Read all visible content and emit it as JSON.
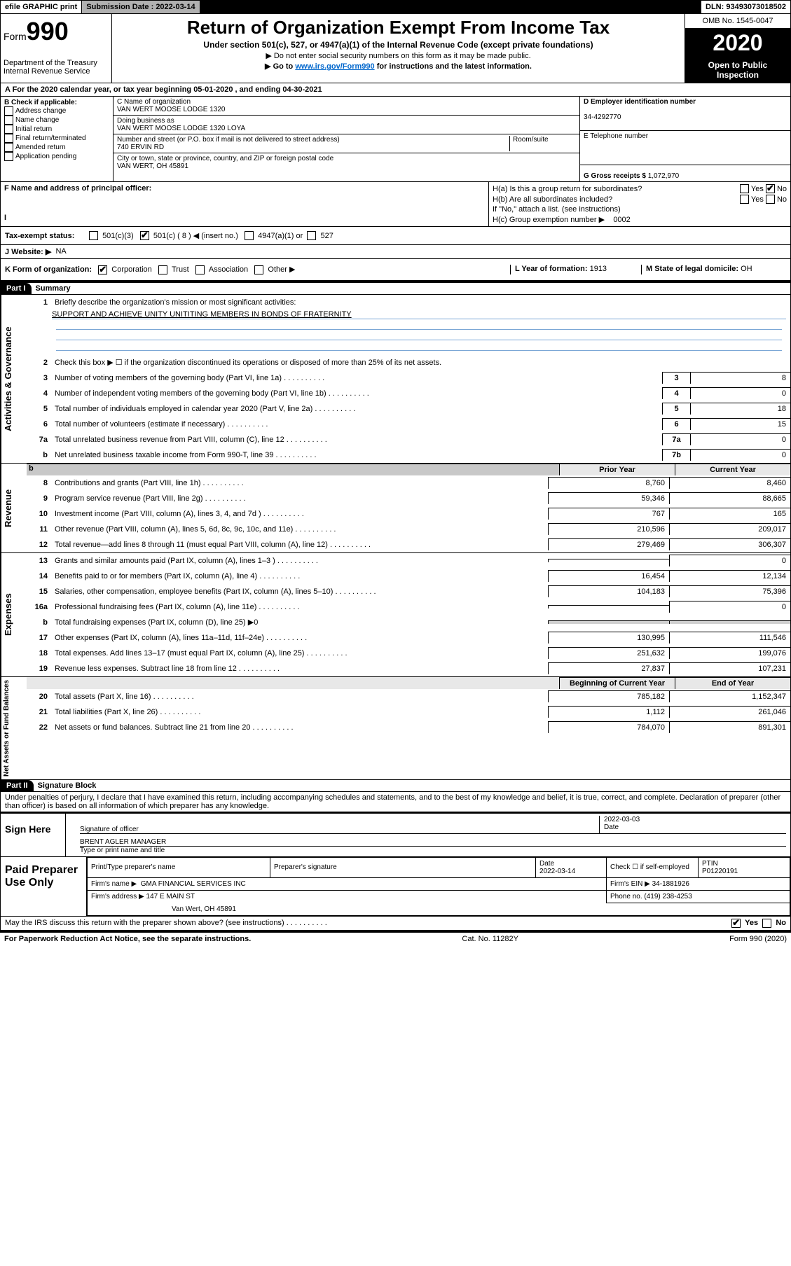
{
  "topbar": {
    "efile": "efile GRAPHIC print",
    "submission_label": "Submission Date : 2022-03-14",
    "dln": "DLN: 93493073018502"
  },
  "header": {
    "form_label": "Form",
    "form_num": "990",
    "dept": "Department of the Treasury",
    "irs": "Internal Revenue Service",
    "title": "Return of Organization Exempt From Income Tax",
    "subtitle": "Under section 501(c), 527, or 4947(a)(1) of the Internal Revenue Code (except private foundations)",
    "instr1": "▶ Do not enter social security numbers on this form as it may be made public.",
    "instr2_pre": "▶ Go to ",
    "instr2_link": "www.irs.gov/Form990",
    "instr2_post": " for instructions and the latest information.",
    "omb": "OMB No. 1545-0047",
    "year": "2020",
    "inspection": "Open to Public Inspection"
  },
  "rowA": "A  For the 2020 calendar year, or tax year beginning 05-01-2020    , and ending 04-30-2021",
  "B": {
    "label": "B Check if applicable:",
    "items": [
      "Address change",
      "Name change",
      "Initial return",
      "Final return/terminated",
      "Amended return",
      "Application pending"
    ]
  },
  "C": {
    "name_label": "C Name of organization",
    "name": "VAN WERT MOOSE LODGE 1320",
    "dba_label": "Doing business as",
    "dba": "VAN WERT MOOSE LODGE 1320 LOYA",
    "addr_label": "Number and street (or P.O. box if mail is not delivered to street address)",
    "room_label": "Room/suite",
    "addr": "740 ERVIN RD",
    "city_label": "City or town, state or province, country, and ZIP or foreign postal code",
    "city": "VAN WERT, OH  45891"
  },
  "D": {
    "label": "D Employer identification number",
    "ein": "34-4292770"
  },
  "E": {
    "label": "E Telephone number",
    "phone": ""
  },
  "G": {
    "label": "G Gross receipts $",
    "val": "1,072,970"
  },
  "F": {
    "label": "F Name and address of principal officer:"
  },
  "H": {
    "a": "H(a)  Is this a group return for subordinates?",
    "b": "H(b)  Are all subordinates included?",
    "b_note": "If \"No,\" attach a list. (see instructions)",
    "c": "H(c)  Group exemption number ▶",
    "c_val": "0002",
    "yes": "Yes",
    "no": "No"
  },
  "I": {
    "label": "Tax-exempt status:",
    "o1": "501(c)(3)",
    "o2": "501(c) ( 8 ) ◀ (insert no.)",
    "o3": "4947(a)(1) or",
    "o4": "527"
  },
  "J": {
    "label": "J   Website: ▶",
    "val": "NA"
  },
  "K": {
    "label": "K Form of organization:",
    "o1": "Corporation",
    "o2": "Trust",
    "o3": "Association",
    "o4": "Other ▶"
  },
  "L": {
    "label": "L Year of formation:",
    "val": "1913"
  },
  "M": {
    "label": "M State of legal domicile:",
    "val": "OH"
  },
  "part1": {
    "header": "Part I",
    "title": "Summary",
    "l1": "Briefly describe the organization's mission or most significant activities:",
    "l1_val": "SUPPORT AND ACHIEVE UNITY UNITITING MEMBERS IN BONDS OF FRATERNITY",
    "l2": "Check this box ▶ ☐  if the organization discontinued its operations or disposed of more than 25% of its net assets.",
    "lines_gov": [
      {
        "n": "3",
        "d": "Number of voting members of the governing body (Part VI, line 1a)",
        "c": "3",
        "v": "8"
      },
      {
        "n": "4",
        "d": "Number of independent voting members of the governing body (Part VI, line 1b)",
        "c": "4",
        "v": "0"
      },
      {
        "n": "5",
        "d": "Total number of individuals employed in calendar year 2020 (Part V, line 2a)",
        "c": "5",
        "v": "18"
      },
      {
        "n": "6",
        "d": "Total number of volunteers (estimate if necessary)",
        "c": "6",
        "v": "15"
      },
      {
        "n": "7a",
        "d": "Total unrelated business revenue from Part VIII, column (C), line 12",
        "c": "7a",
        "v": "0"
      },
      {
        "n": "b",
        "d": "Net unrelated business taxable income from Form 990-T, line 39",
        "c": "7b",
        "v": "0"
      }
    ],
    "head_prior": "Prior Year",
    "head_current": "Current Year",
    "lines_rev": [
      {
        "n": "8",
        "d": "Contributions and grants (Part VIII, line 1h)",
        "p": "8,760",
        "c": "8,460"
      },
      {
        "n": "9",
        "d": "Program service revenue (Part VIII, line 2g)",
        "p": "59,346",
        "c": "88,665"
      },
      {
        "n": "10",
        "d": "Investment income (Part VIII, column (A), lines 3, 4, and 7d )",
        "p": "767",
        "c": "165"
      },
      {
        "n": "11",
        "d": "Other revenue (Part VIII, column (A), lines 5, 6d, 8c, 9c, 10c, and 11e)",
        "p": "210,596",
        "c": "209,017"
      },
      {
        "n": "12",
        "d": "Total revenue—add lines 8 through 11 (must equal Part VIII, column (A), line 12)",
        "p": "279,469",
        "c": "306,307"
      }
    ],
    "lines_exp": [
      {
        "n": "13",
        "d": "Grants and similar amounts paid (Part IX, column (A), lines 1–3 )",
        "p": "",
        "c": "0"
      },
      {
        "n": "14",
        "d": "Benefits paid to or for members (Part IX, column (A), line 4)",
        "p": "16,454",
        "c": "12,134"
      },
      {
        "n": "15",
        "d": "Salaries, other compensation, employee benefits (Part IX, column (A), lines 5–10)",
        "p": "104,183",
        "c": "75,396"
      },
      {
        "n": "16a",
        "d": "Professional fundraising fees (Part IX, column (A), line 11e)",
        "p": "",
        "c": "0"
      },
      {
        "n": "b",
        "d": "Total fundraising expenses (Part IX, column (D), line 25) ▶0",
        "p": "",
        "c": "",
        "shade": true
      },
      {
        "n": "17",
        "d": "Other expenses (Part IX, column (A), lines 11a–11d, 11f–24e)",
        "p": "130,995",
        "c": "111,546"
      },
      {
        "n": "18",
        "d": "Total expenses. Add lines 13–17 (must equal Part IX, column (A), line 25)",
        "p": "251,632",
        "c": "199,076"
      },
      {
        "n": "19",
        "d": "Revenue less expenses. Subtract line 18 from line 12",
        "p": "27,837",
        "c": "107,231"
      }
    ],
    "head_begin": "Beginning of Current Year",
    "head_end": "End of Year",
    "lines_net": [
      {
        "n": "20",
        "d": "Total assets (Part X, line 16)",
        "p": "785,182",
        "c": "1,152,347"
      },
      {
        "n": "21",
        "d": "Total liabilities (Part X, line 26)",
        "p": "1,112",
        "c": "261,046"
      },
      {
        "n": "22",
        "d": "Net assets or fund balances. Subtract line 21 from line 20",
        "p": "784,070",
        "c": "891,301"
      }
    ],
    "vtab_gov": "Activities & Governance",
    "vtab_rev": "Revenue",
    "vtab_exp": "Expenses",
    "vtab_net": "Net Assets or Fund Balances"
  },
  "part2": {
    "header": "Part II",
    "title": "Signature Block",
    "penalty": "Under penalties of perjury, I declare that I have examined this return, including accompanying schedules and statements, and to the best of my knowledge and belief, it is true, correct, and complete. Declaration of preparer (other than officer) is based on all information of which preparer has any knowledge."
  },
  "sign": {
    "left": "Sign Here",
    "sig_label": "Signature of officer",
    "date_label": "Date",
    "date": "2022-03-03",
    "name": "BRENT AGLER  MANAGER",
    "name_label": "Type or print name and title"
  },
  "paid": {
    "left": "Paid Preparer Use Only",
    "h1": "Print/Type preparer's name",
    "h2": "Preparer's signature",
    "h3": "Date",
    "h3v": "2022-03-14",
    "h4": "Check ☐ if self-employed",
    "h5": "PTIN",
    "h5v": "P01220191",
    "firm_label": "Firm's name    ▶",
    "firm": "GMA FINANCIAL SERVICES INC",
    "ein_label": "Firm's EIN ▶",
    "ein": "34-1881926",
    "addr_label": "Firm's address ▶",
    "addr": "147 E MAIN ST",
    "city": "Van Wert, OH  45891",
    "phone_label": "Phone no.",
    "phone": "(419) 238-4253"
  },
  "discuss": {
    "q": "May the IRS discuss this return with the preparer shown above? (see instructions)",
    "yes": "Yes",
    "no": "No"
  },
  "footer": {
    "left": "For Paperwork Reduction Act Notice, see the separate instructions.",
    "mid": "Cat. No. 11282Y",
    "right": "Form 990 (2020)"
  }
}
